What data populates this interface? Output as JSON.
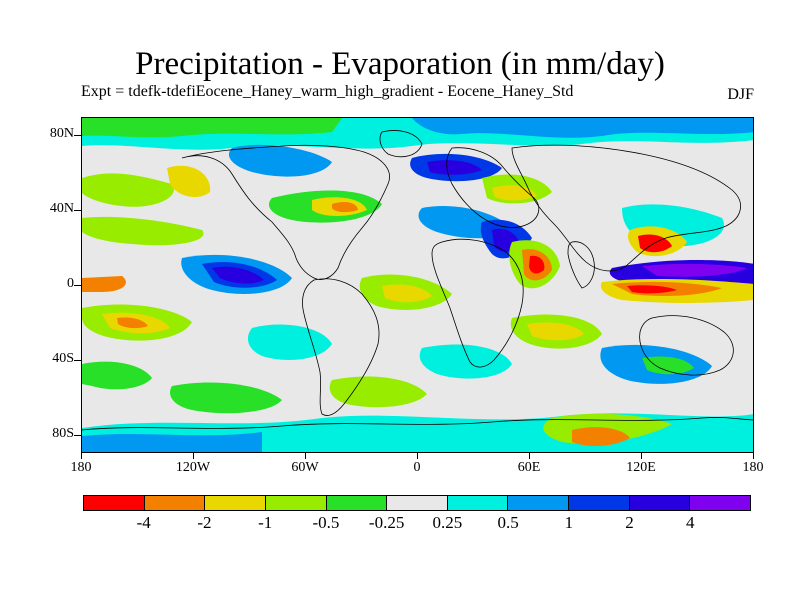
{
  "title": "Precipitation - Evaporation (in mm/day)",
  "subtitle": "Expt = tdefk-tdefiEocene_Haney_warm_high_gradient - Eocene_Haney_Std",
  "season": "DJF",
  "map": {
    "projection": "cylindrical-equidistant",
    "lon_range": [
      -180,
      180
    ],
    "lat_range": [
      -90,
      90
    ],
    "background_color": "#e8e8e8",
    "coastline_color": "#000000"
  },
  "axes": {
    "y_ticks": [
      "80N",
      "40N",
      "0",
      "40S",
      "80S"
    ],
    "x_ticks": [
      "180",
      "120W",
      "60W",
      "0",
      "60E",
      "120E",
      "180"
    ]
  },
  "colorbar": {
    "colors": [
      "#ff0000",
      "#f48000",
      "#e8d800",
      "#98ec00",
      "#28e028",
      "#e8e8e8",
      "#00f0e0",
      "#0098f0",
      "#0038e8",
      "#2800e0",
      "#8000f0"
    ],
    "labels": [
      "-4",
      "-2",
      "-1",
      "-0.5",
      "-0.25",
      "0.25",
      "0.5",
      "1",
      "2",
      "4"
    ]
  }
}
